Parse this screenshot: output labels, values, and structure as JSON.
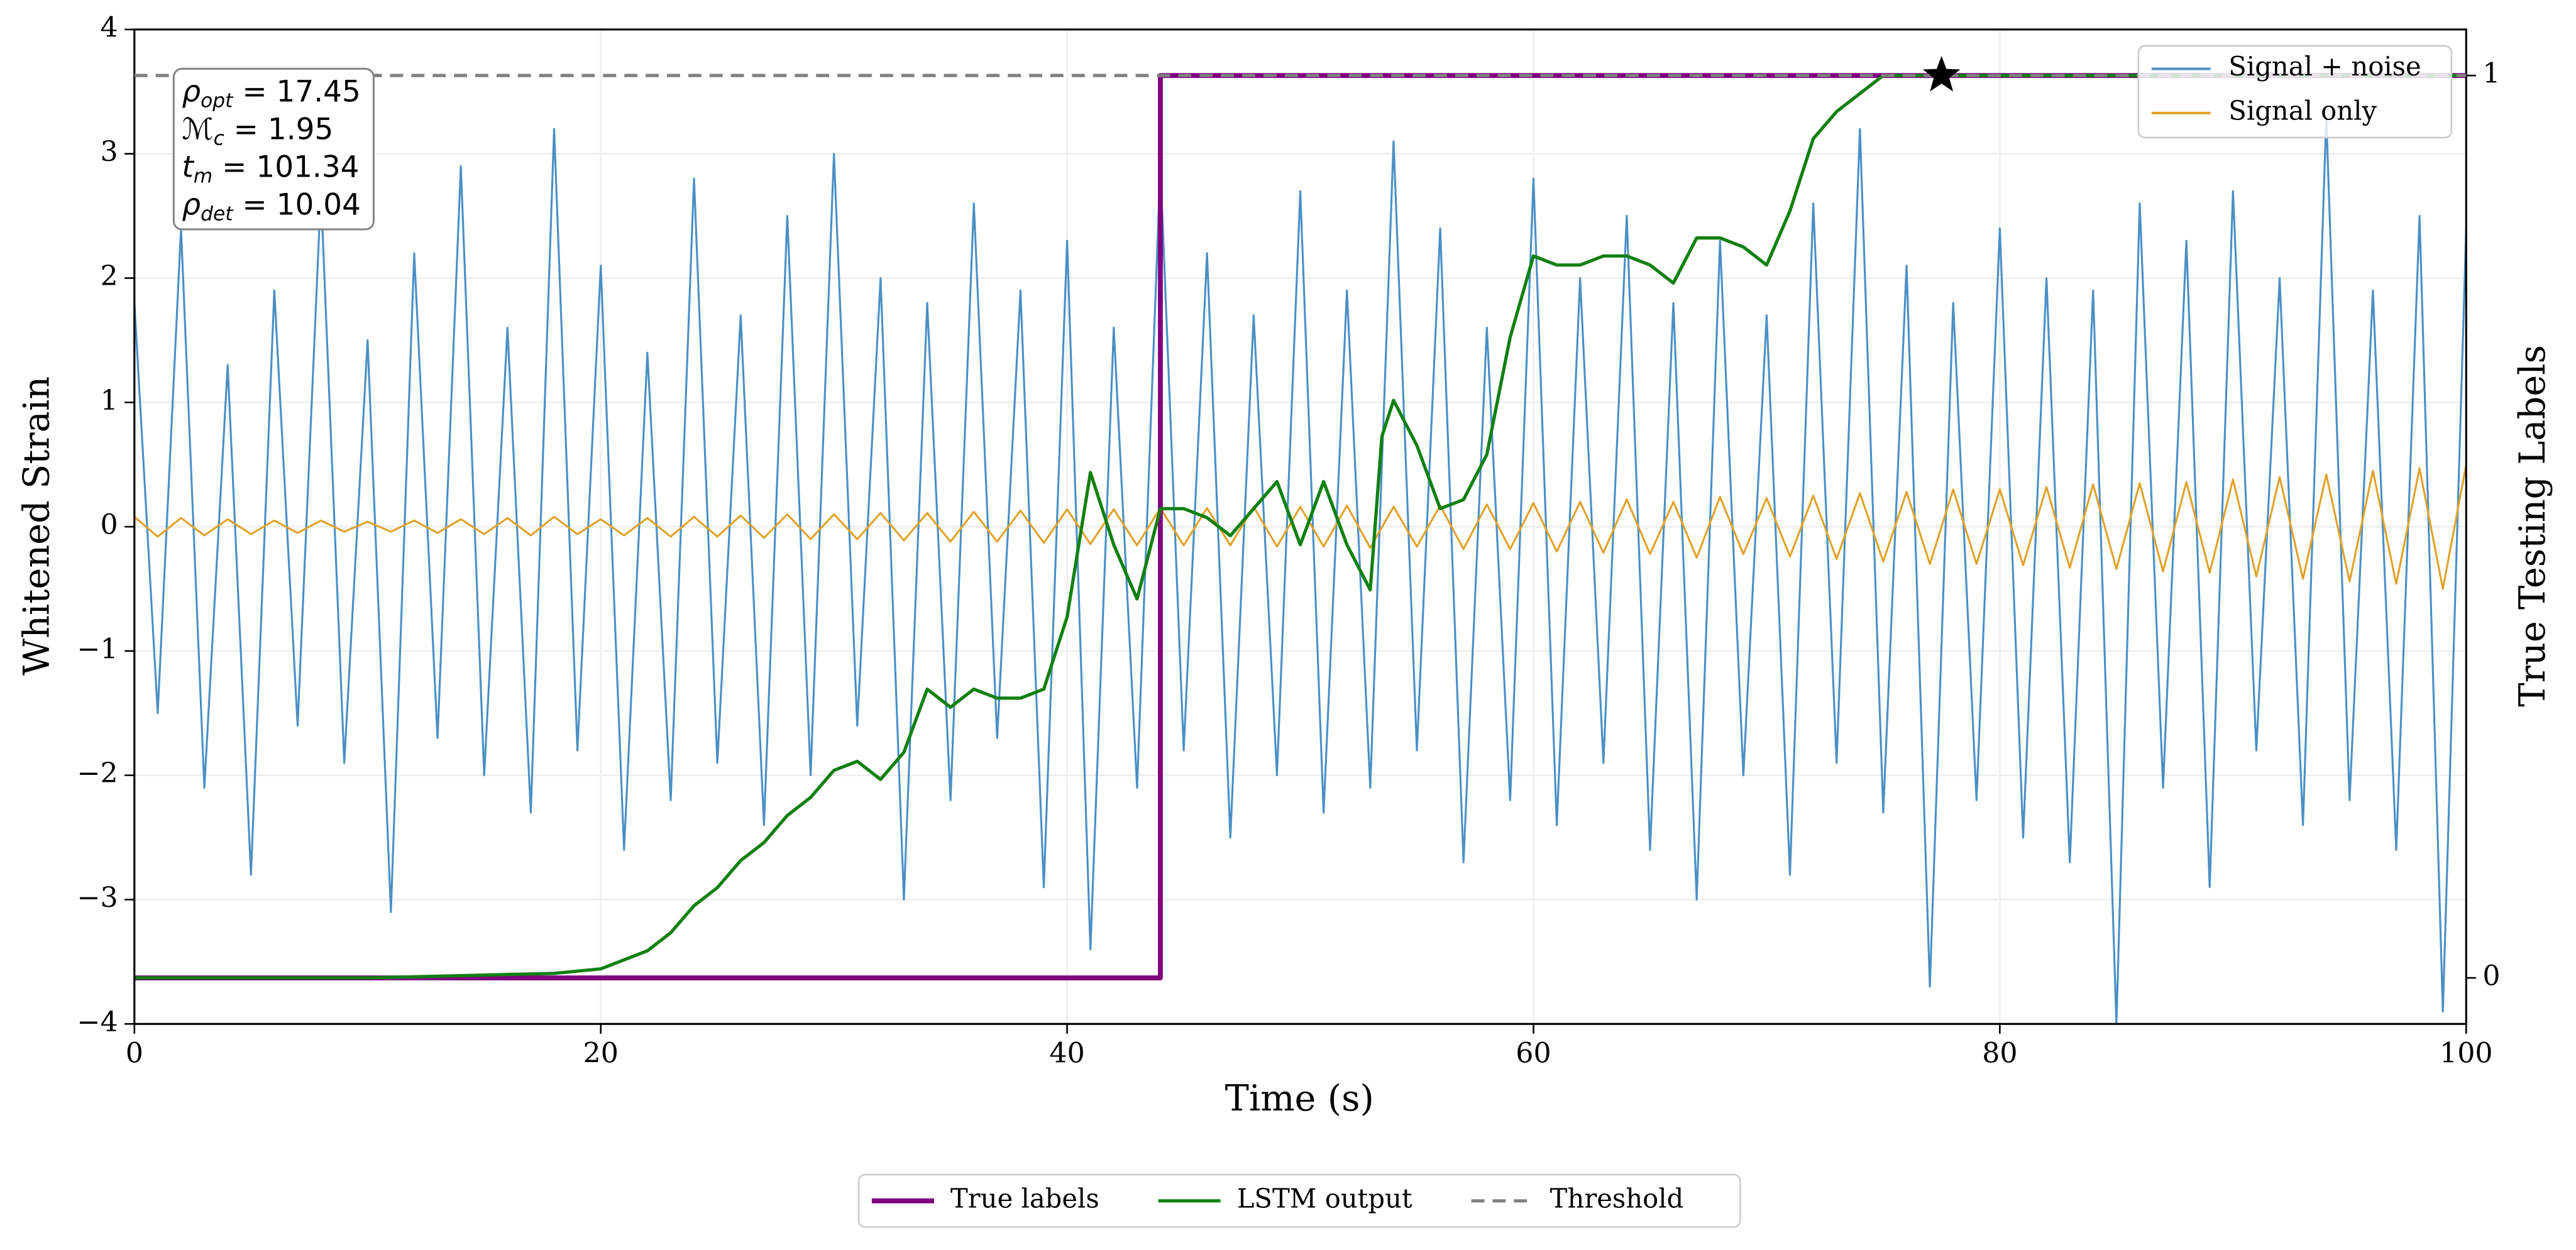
{
  "chart_data": {
    "type": "line",
    "xlabel": "Time (s)",
    "ylabel": "Whitened Strain",
    "y2label": "True Testing Labels",
    "xlim": [
      0,
      100
    ],
    "ylim": [
      -4,
      4
    ],
    "y2lim": [
      -0.051,
      1.051
    ],
    "xticks": [
      0,
      20,
      40,
      60,
      80,
      100
    ],
    "yticks": [
      {
        "value": -4,
        "label": "−4"
      },
      {
        "value": -3,
        "label": "−3"
      },
      {
        "value": -2,
        "label": "−2"
      },
      {
        "value": -1,
        "label": "−1"
      },
      0,
      1,
      2,
      3,
      4
    ],
    "y2ticks": [
      0,
      1
    ],
    "grid": true,
    "annotations": [
      {
        "symbol": "ρ",
        "subscript": "opt",
        "text": " = 17.45"
      },
      {
        "symbol": "ℳ",
        "subscript": "c",
        "text": " = 1.95"
      },
      {
        "symbol": "t",
        "subscript": "m",
        "text": " = 101.34"
      },
      {
        "symbol": "ρ",
        "subscript": "det",
        "text": " = 10.04"
      }
    ],
    "series": [
      {
        "name": "Signal + noise",
        "color": "#4b8fc4",
        "legend": "upper right",
        "x": [
          0,
          1,
          2,
          3,
          4,
          5,
          6,
          7,
          8,
          9,
          10,
          11,
          12,
          13,
          14,
          15,
          16,
          17,
          18,
          19,
          20,
          21,
          22,
          23,
          24,
          25,
          26,
          27,
          28,
          29,
          30,
          31,
          32,
          33,
          34,
          35,
          36,
          37,
          38,
          39,
          40,
          41,
          42,
          43,
          44,
          45,
          46,
          47,
          48,
          49,
          50,
          51,
          52,
          53,
          54,
          55,
          56,
          57,
          58,
          59,
          60,
          61,
          62,
          63,
          64,
          65,
          66,
          67,
          68,
          69,
          70,
          71,
          72,
          73,
          74,
          75,
          76,
          77,
          78,
          79,
          80,
          81,
          82,
          83,
          84,
          85,
          86,
          87,
          88,
          89,
          90,
          91,
          92,
          93,
          94,
          95,
          96,
          97,
          98,
          99,
          100
        ],
        "values": [
          1.8,
          -1.5,
          2.4,
          -2.1,
          1.3,
          -2.8,
          1.9,
          -1.6,
          2.7,
          -1.9,
          1.5,
          -3.1,
          2.2,
          -1.7,
          2.9,
          -2.0,
          1.6,
          -2.3,
          3.2,
          -1.8,
          2.1,
          -2.6,
          1.4,
          -2.2,
          2.8,
          -1.9,
          1.7,
          -2.4,
          2.5,
          -2.0,
          3.0,
          -1.6,
          2.0,
          -3.0,
          1.8,
          -2.2,
          2.6,
          -1.7,
          1.9,
          -2.9,
          2.3,
          -3.4,
          1.6,
          -2.1,
          2.9,
          -1.8,
          2.2,
          -2.5,
          1.7,
          -2.0,
          2.7,
          -2.3,
          1.9,
          -2.1,
          3.1,
          -1.8,
          2.4,
          -2.7,
          1.6,
          -2.2,
          2.8,
          -2.4,
          2.0,
          -1.9,
          2.5,
          -2.6,
          1.8,
          -3.0,
          2.3,
          -2.0,
          1.7,
          -2.8,
          2.6,
          -1.9,
          3.2,
          -2.3,
          2.1,
          -3.7,
          1.8,
          -2.2,
          2.4,
          -2.5,
          2.0,
          -2.7,
          1.9,
          -4.0,
          2.6,
          -2.1,
          2.3,
          -2.9,
          2.7,
          -1.8,
          2.0,
          -2.4,
          3.3,
          -2.2,
          1.9,
          -2.6,
          2.5,
          -3.9,
          2.4
        ]
      },
      {
        "name": "Signal only",
        "color": "#e0a22a",
        "legend": "upper right",
        "x": [
          0,
          1,
          2,
          3,
          4,
          5,
          6,
          7,
          8,
          9,
          10,
          11,
          12,
          13,
          14,
          15,
          16,
          17,
          18,
          19,
          20,
          21,
          22,
          23,
          24,
          25,
          26,
          27,
          28,
          29,
          30,
          31,
          32,
          33,
          34,
          35,
          36,
          37,
          38,
          39,
          40,
          41,
          42,
          43,
          44,
          45,
          46,
          47,
          48,
          49,
          50,
          51,
          52,
          53,
          54,
          55,
          56,
          57,
          58,
          59,
          60,
          61,
          62,
          63,
          64,
          65,
          66,
          67,
          68,
          69,
          70,
          71,
          72,
          73,
          74,
          75,
          76,
          77,
          78,
          79,
          80,
          81,
          82,
          83,
          84,
          85,
          86,
          87,
          88,
          89,
          90,
          91,
          92,
          93,
          94,
          95,
          96,
          97,
          98,
          99,
          100
        ],
        "values": [
          0.08,
          -0.08,
          0.07,
          -0.07,
          0.06,
          -0.06,
          0.05,
          -0.05,
          0.05,
          -0.04,
          0.04,
          -0.04,
          0.05,
          -0.05,
          0.06,
          -0.06,
          0.07,
          -0.07,
          0.08,
          -0.06,
          0.06,
          -0.07,
          0.07,
          -0.08,
          0.08,
          -0.08,
          0.09,
          -0.09,
          0.1,
          -0.1,
          0.1,
          -0.1,
          0.11,
          -0.11,
          0.11,
          -0.12,
          0.12,
          -0.12,
          0.13,
          -0.13,
          0.14,
          -0.14,
          0.14,
          -0.15,
          0.15,
          -0.15,
          0.15,
          -0.15,
          0.16,
          -0.16,
          0.16,
          -0.16,
          0.17,
          -0.17,
          0.16,
          -0.16,
          0.17,
          -0.18,
          0.18,
          -0.18,
          0.19,
          -0.2,
          0.2,
          -0.21,
          0.22,
          -0.22,
          0.2,
          -0.25,
          0.24,
          -0.22,
          0.23,
          -0.24,
          0.25,
          -0.26,
          0.27,
          -0.28,
          0.28,
          -0.3,
          0.3,
          -0.3,
          0.3,
          -0.31,
          0.32,
          -0.33,
          0.34,
          -0.34,
          0.35,
          -0.36,
          0.36,
          -0.37,
          0.38,
          -0.4,
          0.4,
          -0.42,
          0.42,
          -0.44,
          0.45,
          -0.46,
          0.47,
          -0.5,
          0.5
        ]
      },
      {
        "name": "True labels",
        "color": "#800080",
        "legend": "below",
        "axis": "y2",
        "width": 3,
        "x": [
          0,
          44,
          44,
          100
        ],
        "values": [
          0,
          0,
          1,
          1
        ]
      },
      {
        "name": "LSTM output",
        "color": "#118011",
        "legend": "below",
        "axis": "y2",
        "width": 2,
        "x": [
          0,
          10,
          18,
          20,
          22,
          23,
          24,
          25,
          26,
          27,
          28,
          29,
          30,
          31,
          32,
          33,
          34,
          35,
          36,
          37,
          38,
          39,
          40,
          41,
          42,
          43,
          44,
          45,
          46,
          47,
          48,
          49,
          50,
          51,
          52,
          53,
          53.5,
          54,
          55,
          56,
          57,
          58,
          59,
          60,
          61,
          62,
          63,
          64,
          65,
          66,
          67,
          68,
          69,
          70,
          71,
          72,
          73,
          74,
          75,
          76,
          100
        ],
        "values": [
          0,
          0,
          0.005,
          0.01,
          0.03,
          0.05,
          0.08,
          0.1,
          0.13,
          0.15,
          0.18,
          0.2,
          0.23,
          0.24,
          0.22,
          0.25,
          0.32,
          0.3,
          0.32,
          0.31,
          0.31,
          0.32,
          0.4,
          0.56,
          0.48,
          0.42,
          0.52,
          0.52,
          0.51,
          0.49,
          0.52,
          0.55,
          0.48,
          0.55,
          0.48,
          0.43,
          0.6,
          0.64,
          0.59,
          0.52,
          0.53,
          0.58,
          0.71,
          0.8,
          0.79,
          0.79,
          0.8,
          0.8,
          0.79,
          0.77,
          0.82,
          0.82,
          0.81,
          0.79,
          0.85,
          0.93,
          0.96,
          0.98,
          1.0,
          1.0,
          1.0
        ]
      }
    ],
    "threshold": {
      "name": "Threshold",
      "value": 1,
      "axis": "y2",
      "color": "#808080",
      "style": "dashed"
    },
    "marker": {
      "x": 77.5,
      "y": 1,
      "axis": "y2",
      "shape": "star",
      "color": "#000000"
    }
  }
}
